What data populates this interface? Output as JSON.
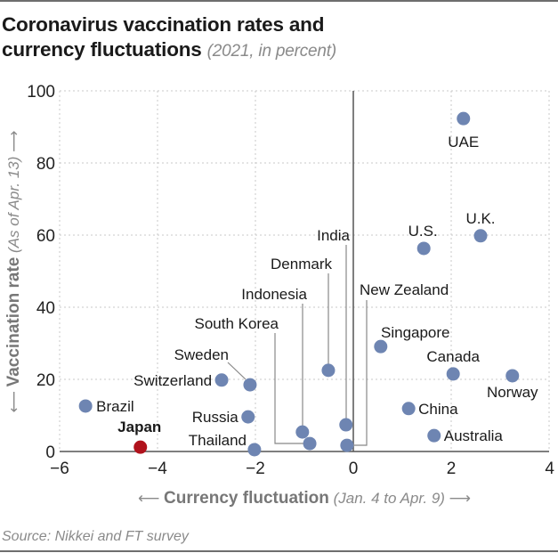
{
  "title": {
    "main_line1": "Coronavirus vaccination rates and",
    "main_line2": "currency fluctuations",
    "subtitle": "(2021, in percent)"
  },
  "source": "Source: Nikkei and FT survey",
  "colors": {
    "point": "#6e85b2",
    "highlight": "#b0121c",
    "grid": "#c8c8c8",
    "axis": "#555555"
  },
  "chart_data": {
    "type": "scatter",
    "title": "Coronavirus vaccination rates and currency fluctuations (2021, in percent)",
    "xlabel": "Currency fluctuation (Jan. 4 to Apr. 9)",
    "ylabel": "Vaccination rate (As of Apr. 13)",
    "xlabel_main": "Currency fluctuation",
    "xlabel_sub": "(Jan. 4 to Apr. 9)",
    "ylabel_main": "Vaccination rate",
    "ylabel_sub": "(As of Apr. 13)",
    "xlim": [
      -6,
      4
    ],
    "ylim": [
      0,
      100
    ],
    "x_ticks": [
      -6,
      -4,
      -2,
      0,
      2,
      4
    ],
    "x_tick_labels": [
      "−6",
      "−4",
      "−2",
      "0",
      "2",
      "4"
    ],
    "y_ticks": [
      0,
      20,
      40,
      60,
      80,
      100
    ],
    "y_tick_labels": [
      "0",
      "20",
      "40",
      "60",
      "80",
      "100"
    ],
    "grid": true,
    "legend": null,
    "points": [
      {
        "name": "UAE",
        "x": 2.25,
        "y": 92.3
      },
      {
        "name": "U.K.",
        "x": 2.6,
        "y": 59.8
      },
      {
        "name": "U.S.",
        "x": 1.44,
        "y": 56.3
      },
      {
        "name": "Singapore",
        "x": 0.56,
        "y": 29.1
      },
      {
        "name": "Canada",
        "x": 2.04,
        "y": 21.5
      },
      {
        "name": "Norway",
        "x": 3.25,
        "y": 21.0
      },
      {
        "name": "China",
        "x": 1.13,
        "y": 11.9
      },
      {
        "name": "Australia",
        "x": 1.65,
        "y": 4.4
      },
      {
        "name": "India",
        "x": -0.15,
        "y": 7.4
      },
      {
        "name": "New Zealand",
        "x": -0.13,
        "y": 1.7
      },
      {
        "name": "Denmark",
        "x": -0.51,
        "y": 22.5
      },
      {
        "name": "Indonesia",
        "x": -1.04,
        "y": 5.4
      },
      {
        "name": "South Korea",
        "x": -0.89,
        "y": 2.2
      },
      {
        "name": "Sweden",
        "x": -2.11,
        "y": 18.5
      },
      {
        "name": "Switzerland",
        "x": -2.69,
        "y": 19.8
      },
      {
        "name": "Russia",
        "x": -2.15,
        "y": 9.6
      },
      {
        "name": "Thailand",
        "x": -2.02,
        "y": 0.5
      },
      {
        "name": "Brazil",
        "x": -5.47,
        "y": 12.6
      },
      {
        "name": "Japan",
        "x": -4.35,
        "y": 1.2,
        "highlight": true
      }
    ]
  }
}
